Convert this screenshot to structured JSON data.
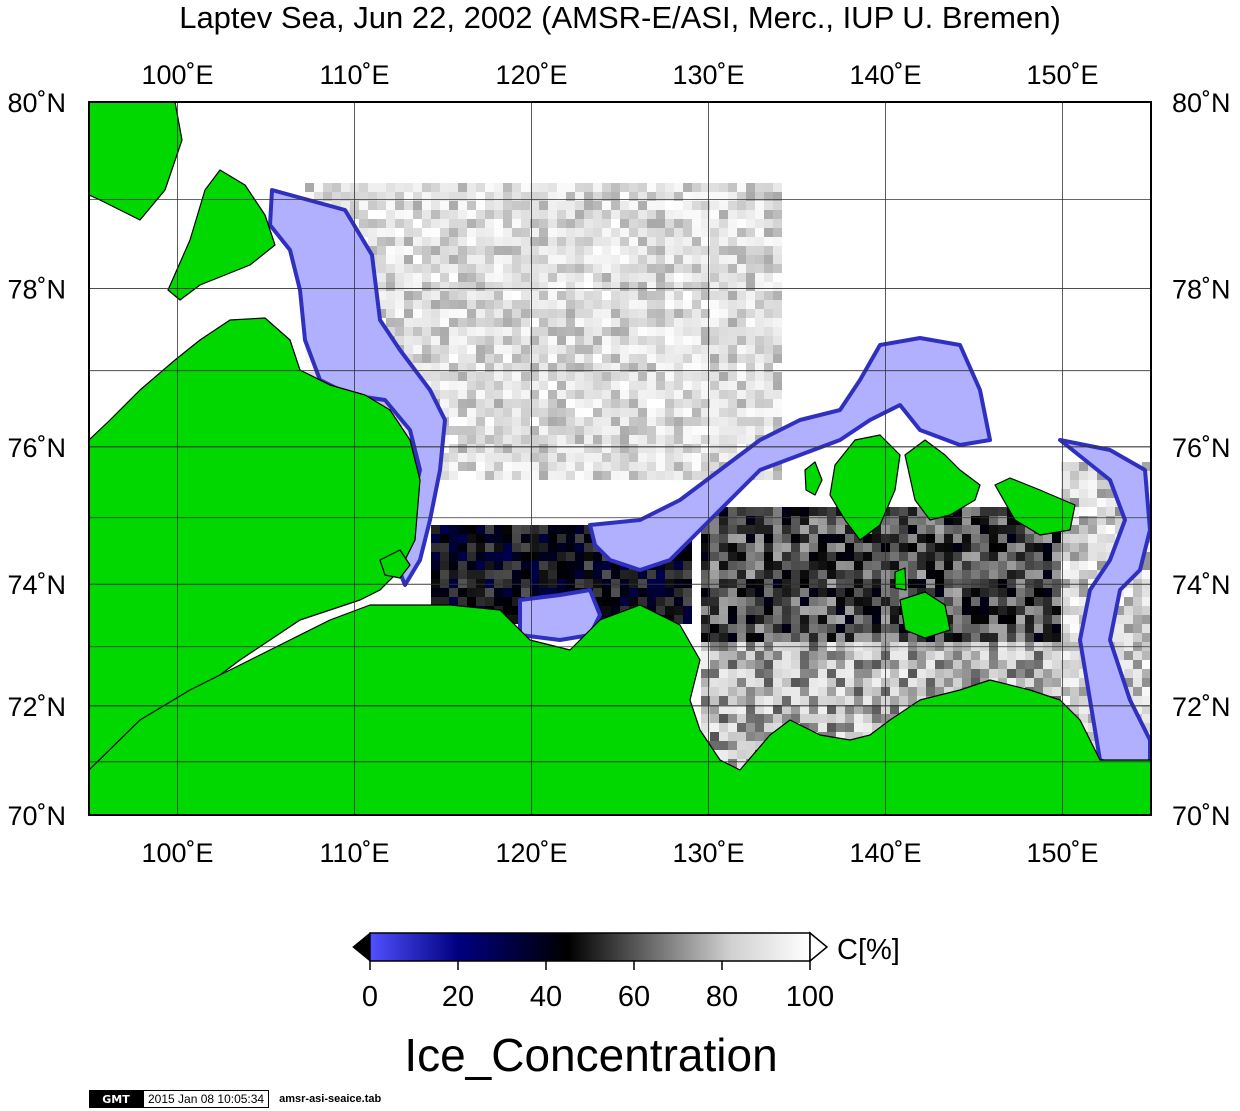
{
  "title": "Laptev Sea, Jun 22, 2002 (AMSR-E/ASI, Merc., IUP U. Bremen)",
  "map": {
    "projection": "Mercator",
    "lon_range": [
      95,
      155
    ],
    "lat_range": [
      70,
      80
    ],
    "lon_ticks": [
      "100˚E",
      "110˚E",
      "120˚E",
      "130˚E",
      "140˚E",
      "150˚E"
    ],
    "lat_ticks": [
      "70˚N",
      "72˚N",
      "74˚N",
      "76˚N",
      "78˚N",
      "80˚N"
    ],
    "lon_values": [
      100,
      110,
      120,
      130,
      140,
      150
    ],
    "lat_values": [
      70,
      72,
      74,
      76,
      78,
      80
    ],
    "grid": true,
    "land_color": "#00d800",
    "ocean_low_ice_color": "#b0b0ff"
  },
  "colorbar": {
    "label": "C[%]",
    "ticks": [
      "0",
      "20",
      "40",
      "60",
      "80",
      "100"
    ],
    "range": [
      0,
      100
    ],
    "colors": [
      "#5050ff",
      "#000080",
      "#000000",
      "#606060",
      "#d0d0d0",
      "#ffffff"
    ]
  },
  "variable": "Ice_Concentration",
  "stamp": {
    "logo": "GMT",
    "timestamp": "2015 Jan 08 10:05:34",
    "file": "amsr-asi-seaice.tab"
  }
}
